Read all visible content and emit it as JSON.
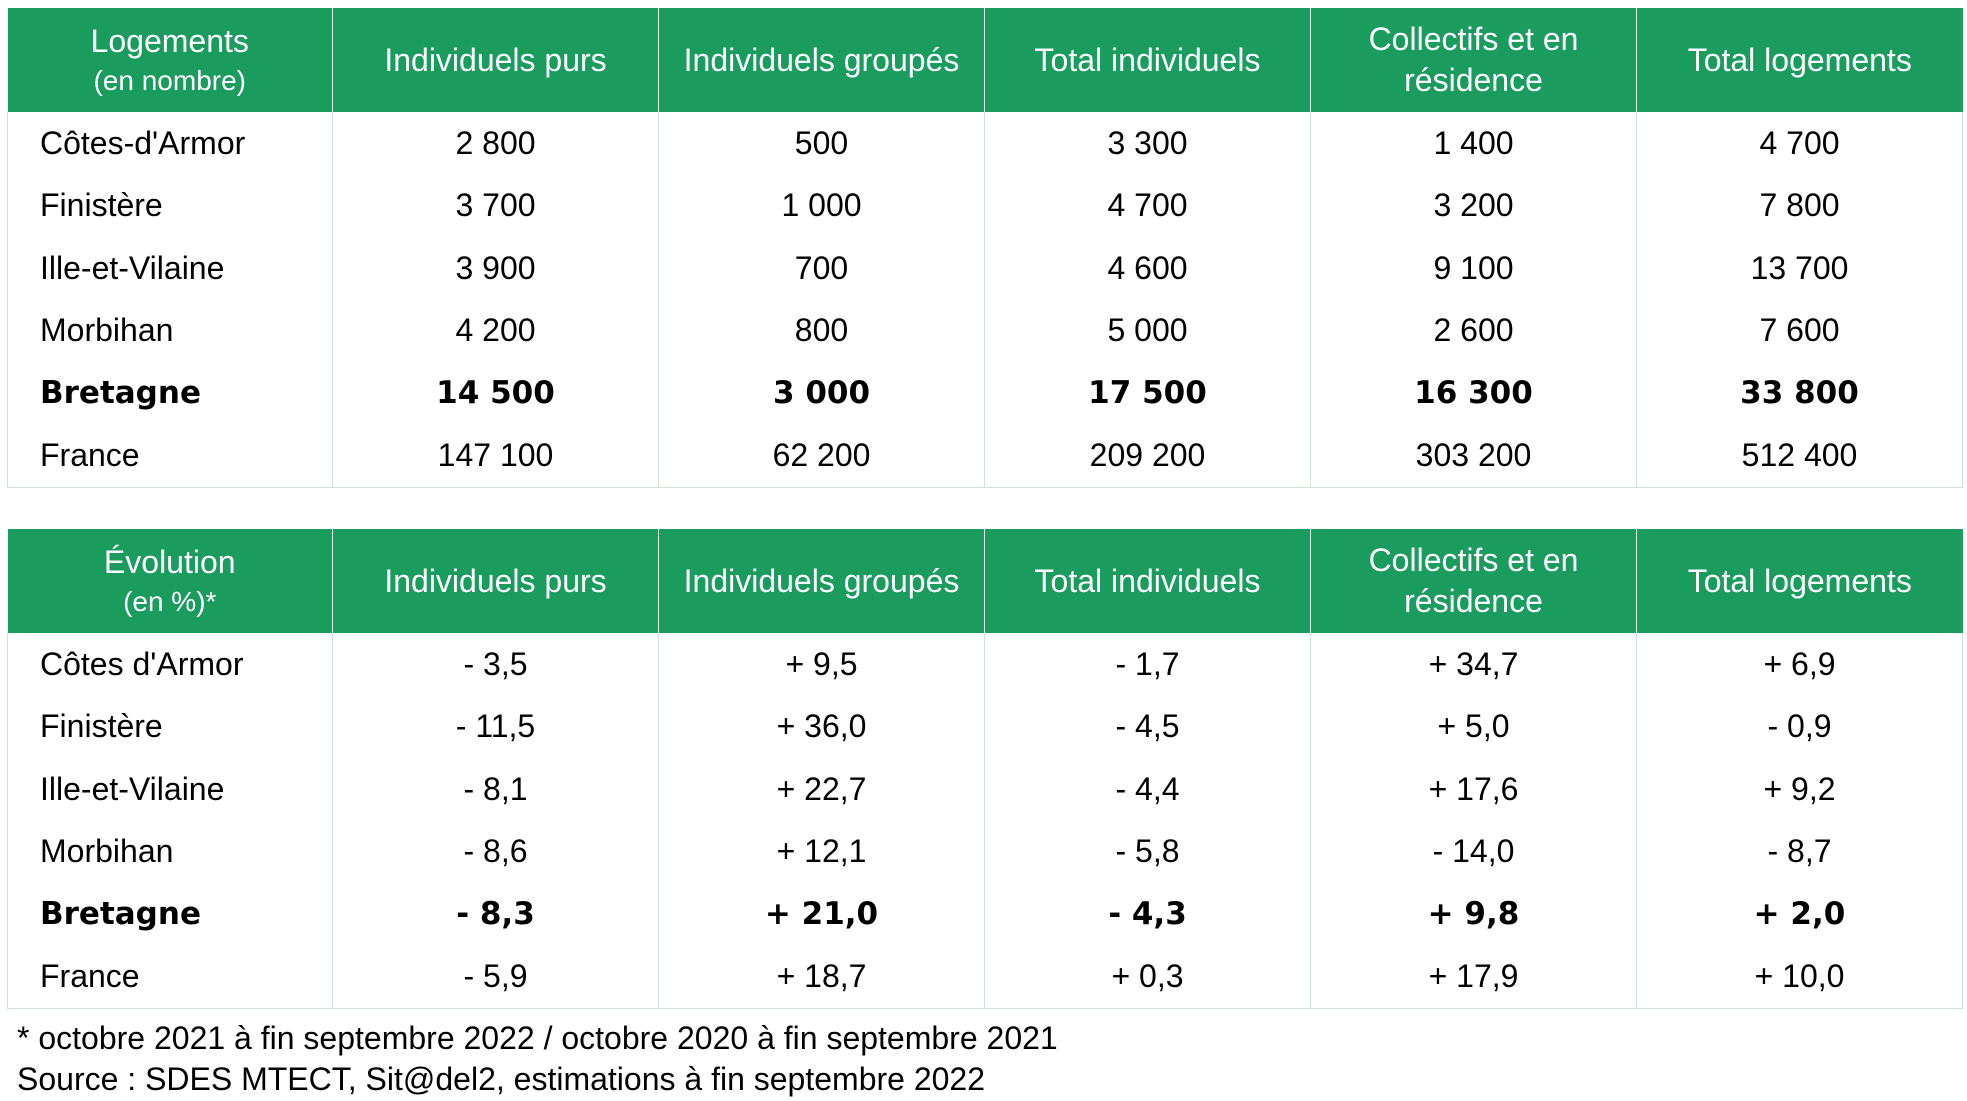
{
  "table_logements": {
    "headers": [
      {
        "label": "Logements",
        "sub": "(en nombre)"
      },
      {
        "label": "Individuels purs"
      },
      {
        "label": "Individuels groupés"
      },
      {
        "label": "Total individuels"
      },
      {
        "label": "Collectifs et en résidence"
      },
      {
        "label": "Total logements"
      }
    ],
    "rows": [
      {
        "cells": [
          "Côtes-d'Armor",
          "2 800",
          "500",
          "3 300",
          "1 400",
          "4 700"
        ]
      },
      {
        "cells": [
          "Finistère",
          "3 700",
          "1 000",
          "4 700",
          "3 200",
          "7 800"
        ]
      },
      {
        "cells": [
          "Ille-et-Vilaine",
          "3 900",
          "700",
          "4 600",
          "9 100",
          "13 700"
        ]
      },
      {
        "cells": [
          "Morbihan",
          "4 200",
          "800",
          "5 000",
          "2 600",
          "7 600"
        ]
      },
      {
        "cells": [
          "Bretagne",
          "14 500",
          "3 000",
          "17 500",
          "16 300",
          "33 800"
        ],
        "bold": true
      },
      {
        "cells": [
          "France",
          "147 100",
          "62 200",
          "209 200",
          "303 200",
          "512 400"
        ]
      }
    ]
  },
  "table_evolution": {
    "headers": [
      {
        "label": "Évolution",
        "sub": "(en %)*"
      },
      {
        "label": "Individuels purs"
      },
      {
        "label": "Individuels groupés"
      },
      {
        "label": "Total individuels"
      },
      {
        "label": "Collectifs et en résidence"
      },
      {
        "label": "Total logements"
      }
    ],
    "rows": [
      {
        "cells": [
          "Côtes d'Armor",
          "- 3,5",
          "+ 9,5",
          "- 1,7",
          "+ 34,7",
          "+ 6,9"
        ]
      },
      {
        "cells": [
          "Finistère",
          "- 11,5",
          "+ 36,0",
          "- 4,5",
          "+ 5,0",
          "- 0,9"
        ]
      },
      {
        "cells": [
          "Ille-et-Vilaine",
          "- 8,1",
          "+ 22,7",
          "- 4,4",
          "+ 17,6",
          "+ 9,2"
        ]
      },
      {
        "cells": [
          "Morbihan",
          "- 8,6",
          "+ 12,1",
          "- 5,8",
          "- 14,0",
          "- 8,7"
        ]
      },
      {
        "cells": [
          "Bretagne",
          "- 8,3",
          "+ 21,0",
          "- 4,3",
          "+ 9,8",
          "+ 2,0"
        ],
        "bold": true
      },
      {
        "cells": [
          "France",
          "- 5,9",
          "+ 18,7",
          "+ 0,3",
          "+ 17,9",
          "+ 10,0"
        ]
      }
    ]
  },
  "notes": {
    "footnote": "*  octobre 2021 à fin septembre 2022 / octobre 2020 à fin septembre 2021",
    "source": "Source : SDES MTECT, Sit@del2, estimations à fin septembre 2022"
  },
  "colors": {
    "header_bg": "#1a9c5f",
    "header_text": "#ffffff",
    "border": "#cfe3d8"
  }
}
